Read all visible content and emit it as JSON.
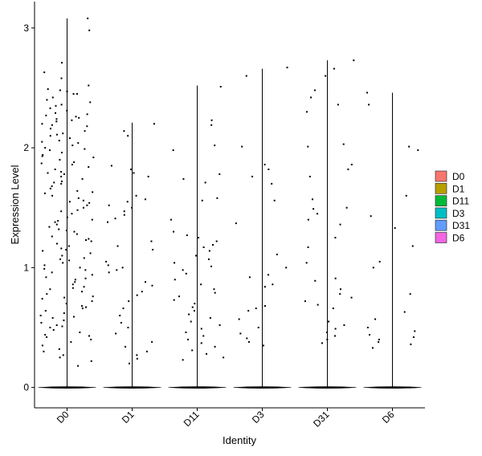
{
  "chart_data": {
    "type": "violin-jitter",
    "xlabel": "Identity",
    "ylabel": "Expression Level",
    "ylim": [
      -0.17,
      3.22
    ],
    "yticks": [
      0,
      1,
      2,
      3
    ],
    "categories": [
      "D0",
      "D1",
      "D11",
      "D3",
      "D31",
      "D6"
    ],
    "legend": {
      "position": "right",
      "entries": [
        {
          "label": "D0",
          "color": "#F8766D"
        },
        {
          "label": "D1",
          "color": "#B79F00"
        },
        {
          "label": "D11",
          "color": "#00BA38"
        },
        {
          "label": "D3",
          "color": "#00BFC4"
        },
        {
          "label": "D31",
          "color": "#619CFF"
        },
        {
          "label": "D6",
          "color": "#F564E3"
        }
      ]
    },
    "violins": [
      {
        "name": "D0",
        "max": 3.08
      },
      {
        "name": "D1",
        "max": 2.21
      },
      {
        "name": "D11",
        "max": 2.52
      },
      {
        "name": "D3",
        "max": 2.66
      },
      {
        "name": "D31",
        "max": 2.73
      },
      {
        "name": "D6",
        "max": 2.46
      }
    ],
    "points": {
      "D0": [
        3.08,
        2.98,
        2.63,
        2.58,
        2.52,
        2.49,
        2.48,
        2.47,
        2.45,
        2.42,
        2.4,
        2.38,
        2.36,
        2.33,
        2.31,
        2.29,
        2.27,
        2.25,
        2.24,
        2.22,
        2.2,
        2.18,
        2.16,
        2.14,
        2.12,
        2.1,
        2.08,
        2.06,
        2.04,
        2.02,
        2.0,
        1.98,
        1.96,
        1.94,
        1.92,
        1.9,
        1.88,
        1.86,
        1.84,
        1.82,
        1.8,
        1.78,
        1.76,
        1.74,
        1.72,
        1.7,
        1.68,
        1.66,
        1.64,
        1.62,
        1.6,
        1.58,
        1.56,
        1.54,
        1.52,
        1.5,
        1.48,
        1.45,
        1.42,
        1.4,
        1.38,
        1.36,
        1.34,
        1.32,
        1.3,
        1.28,
        1.26,
        1.24,
        1.22,
        1.2,
        1.18,
        1.16,
        1.14,
        1.12,
        1.1,
        1.08,
        1.06,
        1.04,
        1.02,
        1.0,
        0.98,
        0.96,
        0.94,
        0.92,
        0.9,
        0.88,
        0.86,
        0.84,
        0.82,
        0.8,
        0.78,
        0.76,
        0.74,
        0.72,
        0.7,
        0.68,
        0.66,
        0.64,
        0.62,
        0.6,
        0.58,
        0.56,
        0.54,
        0.52,
        0.5,
        0.48,
        0.46,
        0.44,
        0.42,
        0.4,
        0.38,
        0.35,
        0.32,
        0.3,
        0.27,
        0.25,
        0.22,
        0.18,
        2.71,
        2.45,
        2.35,
        2.28,
        2.26,
        2.23,
        2.19,
        2.11,
        2.05,
        1.99,
        1.93,
        1.87,
        1.79,
        1.71,
        1.63,
        1.55,
        1.47,
        1.39,
        1.31,
        1.23,
        1.15,
        1.07,
        0.99,
        0.91,
        0.83,
        0.75,
        0.67,
        0.59,
        0.51,
        0.43
      ],
      "D1": [
        2.2,
        2.14,
        2.1,
        1.85,
        1.82,
        1.79,
        1.76,
        1.6,
        1.57,
        1.55,
        1.52,
        1.5,
        1.47,
        1.44,
        1.41,
        1.38,
        1.22,
        1.18,
        1.15,
        1.05,
        1.02,
        1.0,
        0.98,
        0.96,
        0.88,
        0.85,
        0.8,
        0.77,
        0.72,
        0.66,
        0.6,
        0.54,
        0.5,
        0.45,
        0.38,
        0.34,
        0.3,
        0.27,
        0.24,
        0.2
      ],
      "D11": [
        2.51,
        2.23,
        2.19,
        2.02,
        1.98,
        1.78,
        1.74,
        1.71,
        1.58,
        1.56,
        1.4,
        1.3,
        1.27,
        1.25,
        1.22,
        1.19,
        1.17,
        1.14,
        1.1,
        1.07,
        1.04,
        1.01,
        0.98,
        0.95,
        0.9,
        0.86,
        0.82,
        0.79,
        0.76,
        0.73,
        0.7,
        0.67,
        0.64,
        0.61,
        0.58,
        0.55,
        0.52,
        0.49,
        0.46,
        0.43,
        0.4,
        0.37,
        0.34,
        0.31,
        0.28,
        0.25,
        0.23
      ],
      "D3": [
        2.67,
        2.6,
        2.01,
        1.86,
        1.82,
        1.76,
        1.7,
        1.56,
        1.37,
        1.11,
        1.0,
        0.94,
        0.92,
        0.86,
        0.84,
        0.68,
        0.66,
        0.64,
        0.57,
        0.5,
        0.45,
        0.41,
        0.38,
        0.35
      ],
      "D31": [
        2.73,
        2.66,
        2.6,
        2.48,
        2.42,
        2.36,
        2.3,
        2.03,
        2.01,
        1.86,
        1.82,
        1.76,
        1.57,
        1.5,
        1.49,
        1.45,
        1.4,
        1.36,
        1.25,
        1.17,
        1.04,
        0.91,
        0.89,
        0.82,
        0.78,
        0.75,
        0.72,
        0.69,
        0.66,
        0.55,
        0.52,
        0.49,
        0.46,
        0.43,
        0.4,
        0.37
      ],
      "D6": [
        2.46,
        2.36,
        2.01,
        1.98,
        1.6,
        1.43,
        1.33,
        1.18,
        1.05,
        1.0,
        0.78,
        0.63,
        0.57,
        0.5,
        0.47,
        0.44,
        0.42,
        0.4,
        0.38,
        0.36,
        0.33
      ]
    }
  }
}
